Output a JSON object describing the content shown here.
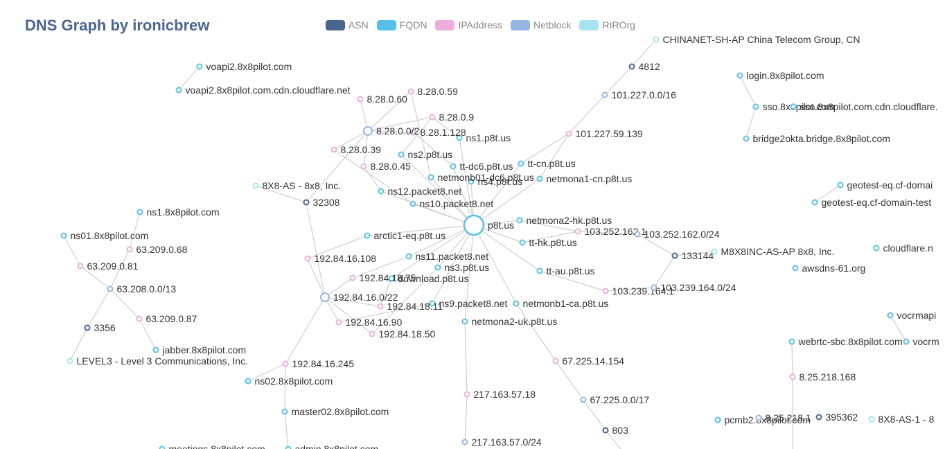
{
  "title": "DNS Graph by ironicbrew",
  "legend": [
    {
      "label": "ASN",
      "color": "#4a6490"
    },
    {
      "label": "FQDN",
      "color": "#56c1e8"
    },
    {
      "label": "IPAddress",
      "color": "#eeaedc"
    },
    {
      "label": "Netblock",
      "color": "#94b6e6"
    },
    {
      "label": "RIROrg",
      "color": "#a7e4f0"
    }
  ],
  "colors": {
    "ASN": "#4a6490",
    "FQDN": "#56c1e8",
    "IPAddress": "#eeaedc",
    "Netblock": "#94b6e6",
    "RIROrg": "#a7e4f0"
  },
  "nodes": [
    {
      "id": "p8t",
      "label": "p8t.us",
      "type": "FQDN",
      "big": true
    },
    {
      "id": "ns1p8t",
      "label": "ns1.p8t.us",
      "type": "FQDN"
    },
    {
      "id": "ns2p8t",
      "label": "ns2.p8t.us",
      "type": "FQDN"
    },
    {
      "id": "ns3p8t",
      "label": "ns3.p8t.us",
      "type": "FQDN"
    },
    {
      "id": "ns4p8t",
      "label": "ns4.p8t.us",
      "type": "FQDN"
    },
    {
      "id": "ttdc6",
      "label": "tt-dc6.p8t.us",
      "type": "FQDN"
    },
    {
      "id": "netmonb01",
      "label": "netmonb01-dc6.p8t.us",
      "type": "FQDN"
    },
    {
      "id": "ttcn",
      "label": "tt-cn.p8t.us",
      "type": "FQDN"
    },
    {
      "id": "netmona1cn",
      "label": "netmona1-cn.p8t.us",
      "type": "FQDN"
    },
    {
      "id": "netmona2hk",
      "label": "netmona2-hk.p8t.us",
      "type": "FQDN"
    },
    {
      "id": "tthk",
      "label": "tt-hk.p8t.us",
      "type": "FQDN"
    },
    {
      "id": "ttau",
      "label": "tt-au.p8t.us",
      "type": "FQDN"
    },
    {
      "id": "netmonb1ca",
      "label": "netmonb1-ca.p8t.us",
      "type": "FQDN"
    },
    {
      "id": "netmona2uk",
      "label": "netmona2-uk.p8t.us",
      "type": "FQDN"
    },
    {
      "id": "ns9pk",
      "label": "ns9.packet8.net",
      "type": "FQDN"
    },
    {
      "id": "download",
      "label": "download.p8t.us",
      "type": "FQDN"
    },
    {
      "id": "ns11pk",
      "label": "ns11.packet8.net",
      "type": "FQDN"
    },
    {
      "id": "arctic1",
      "label": "arctic1-eq.p8t.us",
      "type": "FQDN"
    },
    {
      "id": "ns10pk",
      "label": "ns10.packet8.net",
      "type": "FQDN"
    },
    {
      "id": "ns12pk",
      "label": "ns12.packet8.net",
      "type": "FQDN"
    },
    {
      "id": "ip_8_28_0_60",
      "label": "8.28.0.60",
      "type": "IPAddress"
    },
    {
      "id": "ip_8_28_0_59",
      "label": "8.28.0.59",
      "type": "IPAddress"
    },
    {
      "id": "ip_8_28_0_9",
      "label": "8.28.0.9",
      "type": "IPAddress"
    },
    {
      "id": "ip_8_28_1_128",
      "label": "8.28.1.128",
      "type": "IPAddress"
    },
    {
      "id": "ip_8_28_0_39",
      "label": "8.28.0.39",
      "type": "IPAddress"
    },
    {
      "id": "ip_8_28_0_45",
      "label": "8.28.0.45",
      "type": "IPAddress"
    },
    {
      "id": "nb_8_28",
      "label": "8.28.0.0/2",
      "type": "Netblock",
      "mid": true
    },
    {
      "id": "asn_32308",
      "label": "32308",
      "type": "ASN"
    },
    {
      "id": "org_8x8as",
      "label": "8X8-AS - 8x8, Inc.",
      "type": "RIROrg"
    },
    {
      "id": "voapi2",
      "label": "voapi2.8x8pilot.com",
      "type": "FQDN"
    },
    {
      "id": "voapi2cdn",
      "label": "voapi2.8x8pilot.com.cdn.cloudflare.net",
      "type": "FQDN"
    },
    {
      "id": "org_chinanet",
      "label": "CHINANET-SH-AP China Telecom Group, CN",
      "type": "RIROrg"
    },
    {
      "id": "asn_4812",
      "label": "4812",
      "type": "ASN"
    },
    {
      "id": "nb_101",
      "label": "101.227.0.0/16",
      "type": "Netblock"
    },
    {
      "id": "ip_101",
      "label": "101.227.59.139",
      "type": "IPAddress"
    },
    {
      "id": "ip_103_252",
      "label": "103.252.162.1",
      "type": "IPAddress"
    },
    {
      "id": "nb_103_252",
      "label": "103.252.162.0/24",
      "type": "Netblock"
    },
    {
      "id": "asn_133144",
      "label": "133144",
      "type": "ASN"
    },
    {
      "id": "org_m8x8",
      "label": "M8X8INC-AS-AP 8x8, Inc.",
      "type": "RIROrg"
    },
    {
      "id": "ip_103_239",
      "label": "103.239.164.1",
      "type": "IPAddress"
    },
    {
      "id": "nb_103_239",
      "label": "103.239.164.0/24",
      "type": "Netblock"
    },
    {
      "id": "ip_192_108",
      "label": "192.84.16.108",
      "type": "IPAddress"
    },
    {
      "id": "ip_192_18_75",
      "label": "192.84.18.75",
      "type": "IPAddress"
    },
    {
      "id": "ip_192_18_11",
      "label": "192.84.18.11",
      "type": "IPAddress"
    },
    {
      "id": "ip_192_90",
      "label": "192.84.16.90",
      "type": "IPAddress"
    },
    {
      "id": "ip_192_18_50",
      "label": "192.84.18.50",
      "type": "IPAddress"
    },
    {
      "id": "nb_192",
      "label": "192.84.16.0/22",
      "type": "Netblock",
      "mid": true
    },
    {
      "id": "ip_192_245",
      "label": "192.84.16.245",
      "type": "IPAddress"
    },
    {
      "id": "ns02",
      "label": "ns02.8x8pilot.com",
      "type": "FQDN"
    },
    {
      "id": "master02",
      "label": "master02.8x8pilot.com",
      "type": "FQDN"
    },
    {
      "id": "meetings",
      "label": "meetings.8x8pilot.com",
      "type": "FQDN"
    },
    {
      "id": "admin",
      "label": "admin.8x8pilot.com",
      "type": "FQDN"
    },
    {
      "id": "ns1_8x8",
      "label": "ns1.8x8pilot.com",
      "type": "FQDN"
    },
    {
      "id": "ns01_8x8",
      "label": "ns01.8x8pilot.com",
      "type": "FQDN"
    },
    {
      "id": "ip_63_68",
      "label": "63.209.0.68",
      "type": "IPAddress"
    },
    {
      "id": "ip_63_81",
      "label": "63.209.0.81",
      "type": "IPAddress"
    },
    {
      "id": "nb_63",
      "label": "63.208.0.0/13",
      "type": "Netblock"
    },
    {
      "id": "ip_63_87",
      "label": "63.209.0.87",
      "type": "IPAddress"
    },
    {
      "id": "asn_3356",
      "label": "3356",
      "type": "ASN"
    },
    {
      "id": "jabber",
      "label": "jabber.8x8pilot.com",
      "type": "FQDN"
    },
    {
      "id": "org_level3",
      "label": "LEVEL3 - Level 3 Communications, Inc.",
      "type": "RIROrg"
    },
    {
      "id": "ip_67",
      "label": "67.225.14.154",
      "type": "IPAddress"
    },
    {
      "id": "nb_67",
      "label": "67.225.0.0/17",
      "type": "Netblock"
    },
    {
      "id": "asn_803",
      "label": "803",
      "type": "ASN"
    },
    {
      "id": "ip_217",
      "label": "217.163.57.18",
      "type": "IPAddress"
    },
    {
      "id": "nb_217",
      "label": "217.163.57.0/24",
      "type": "Netblock"
    },
    {
      "id": "login",
      "label": "login.8x8pilot.com",
      "type": "FQDN"
    },
    {
      "id": "sso",
      "label": "sso.8x8pilot.com",
      "type": "FQDN"
    },
    {
      "id": "ssocdn",
      "label": "sso.8x8pilot.com.cdn.cloudflare.",
      "type": "FQDN"
    },
    {
      "id": "bridge2okta",
      "label": "bridge2okta.bridge.8x8pilot.com",
      "type": "FQDN"
    },
    {
      "id": "geotest1",
      "label": "geotest-eq.cf-domai",
      "type": "FQDN"
    },
    {
      "id": "geotest2",
      "label": "geotest-eq.cf-domain-test",
      "type": "FQDN"
    },
    {
      "id": "cloudflare",
      "label": "cloudflare.n",
      "type": "FQDN"
    },
    {
      "id": "awsdns",
      "label": "awsdns-61.org",
      "type": "FQDN"
    },
    {
      "id": "vocrmap1",
      "label": "vocrmapi",
      "type": "FQDN"
    },
    {
      "id": "vocrm2",
      "label": "vocrm",
      "type": "FQDN"
    },
    {
      "id": "webrtc",
      "label": "webrtc-sbc.8x8pilot.com",
      "type": "FQDN"
    },
    {
      "id": "ip_8_25",
      "label": "8.25.218.168",
      "type": "IPAddress"
    },
    {
      "id": "pcmb2",
      "label": "pcmb2.8x8pilot.com",
      "type": "FQDN"
    },
    {
      "id": "nb_8_25",
      "label": "8.25.218.1",
      "type": "Netblock"
    },
    {
      "id": "asn_395362",
      "label": "395362",
      "type": "ASN"
    },
    {
      "id": "org_8x8as1",
      "label": "8X8-AS-1 - 8",
      "type": "RIROrg"
    }
  ]
}
